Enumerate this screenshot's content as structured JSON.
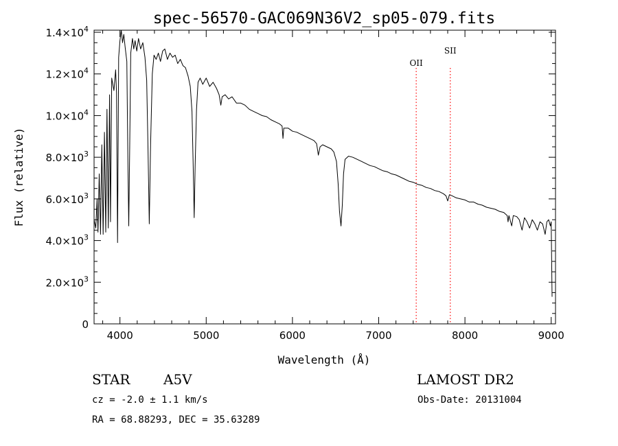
{
  "chart_data": {
    "type": "line",
    "title": "spec-56570-GAC069N36V2_sp05-079.fits",
    "xlabel": "Wavelength (Å)",
    "ylabel": "Flux (relative)",
    "xlim": [
      3700,
      9050
    ],
    "ylim": [
      0,
      14100
    ],
    "x_ticks": [
      {
        "value": 4000,
        "label": "4000"
      },
      {
        "value": 5000,
        "label": "5000"
      },
      {
        "value": 6000,
        "label": "6000"
      },
      {
        "value": 7000,
        "label": "7000"
      },
      {
        "value": 8000,
        "label": "8000"
      },
      {
        "value": 9000,
        "label": "9000"
      }
    ],
    "y_ticks": [
      {
        "value": 0,
        "mant": "0",
        "exp": ""
      },
      {
        "value": 2000,
        "mant": "2.0×10",
        "exp": "3"
      },
      {
        "value": 4000,
        "mant": "4.0×10",
        "exp": "3"
      },
      {
        "value": 6000,
        "mant": "6.0×10",
        "exp": "3"
      },
      {
        "value": 8000,
        "mant": "8.0×10",
        "exp": "3"
      },
      {
        "value": 10000,
        "mant": "1.0×10",
        "exp": "4"
      },
      {
        "value": 12000,
        "mant": "1.2×10",
        "exp": "4"
      },
      {
        "value": 14000,
        "mant": "1.4×10",
        "exp": "4"
      }
    ],
    "grid": false,
    "series": [
      {
        "color": "#000000",
        "points": [
          [
            3700,
            5000
          ],
          [
            3720,
            4600
          ],
          [
            3735,
            6000
          ],
          [
            3745,
            4400
          ],
          [
            3760,
            7200
          ],
          [
            3775,
            4300
          ],
          [
            3790,
            8600
          ],
          [
            3805,
            4300
          ],
          [
            3820,
            9200
          ],
          [
            3835,
            4400
          ],
          [
            3850,
            10300
          ],
          [
            3865,
            4600
          ],
          [
            3880,
            11000
          ],
          [
            3890,
            4900
          ],
          [
            3905,
            11800
          ],
          [
            3930,
            11200
          ],
          [
            3950,
            12200
          ],
          [
            3960,
            11100
          ],
          [
            3972,
            3900
          ],
          [
            3985,
            12800
          ],
          [
            4000,
            13600
          ],
          [
            4015,
            14100
          ],
          [
            4030,
            13500
          ],
          [
            4045,
            13900
          ],
          [
            4060,
            13300
          ],
          [
            4080,
            12600
          ],
          [
            4092,
            8000
          ],
          [
            4102,
            4700
          ],
          [
            4112,
            8200
          ],
          [
            4125,
            13000
          ],
          [
            4145,
            13700
          ],
          [
            4160,
            13200
          ],
          [
            4175,
            13600
          ],
          [
            4195,
            13100
          ],
          [
            4215,
            13700
          ],
          [
            4240,
            13200
          ],
          [
            4265,
            13500
          ],
          [
            4290,
            12800
          ],
          [
            4310,
            11700
          ],
          [
            4325,
            8500
          ],
          [
            4340,
            4800
          ],
          [
            4355,
            8600
          ],
          [
            4375,
            12000
          ],
          [
            4395,
            12900
          ],
          [
            4420,
            12700
          ],
          [
            4445,
            13000
          ],
          [
            4470,
            12600
          ],
          [
            4495,
            13100
          ],
          [
            4520,
            13200
          ],
          [
            4550,
            12700
          ],
          [
            4580,
            13000
          ],
          [
            4610,
            12800
          ],
          [
            4640,
            12900
          ],
          [
            4670,
            12500
          ],
          [
            4700,
            12700
          ],
          [
            4730,
            12400
          ],
          [
            4760,
            12300
          ],
          [
            4790,
            11900
          ],
          [
            4815,
            11400
          ],
          [
            4835,
            10200
          ],
          [
            4850,
            7500
          ],
          [
            4861,
            5100
          ],
          [
            4872,
            7600
          ],
          [
            4888,
            10300
          ],
          [
            4905,
            11600
          ],
          [
            4930,
            11800
          ],
          [
            4960,
            11500
          ],
          [
            5000,
            11800
          ],
          [
            5040,
            11400
          ],
          [
            5080,
            11600
          ],
          [
            5120,
            11300
          ],
          [
            5150,
            11000
          ],
          [
            5170,
            10500
          ],
          [
            5185,
            10900
          ],
          [
            5220,
            11000
          ],
          [
            5260,
            10800
          ],
          [
            5300,
            10900
          ],
          [
            5350,
            10600
          ],
          [
            5400,
            10600
          ],
          [
            5450,
            10500
          ],
          [
            5500,
            10300
          ],
          [
            5550,
            10200
          ],
          [
            5600,
            10100
          ],
          [
            5650,
            10000
          ],
          [
            5700,
            9950
          ],
          [
            5750,
            9800
          ],
          [
            5800,
            9700
          ],
          [
            5850,
            9600
          ],
          [
            5880,
            9500
          ],
          [
            5890,
            8900
          ],
          [
            5900,
            9400
          ],
          [
            5950,
            9400
          ],
          [
            6000,
            9250
          ],
          [
            6050,
            9200
          ],
          [
            6100,
            9100
          ],
          [
            6150,
            9000
          ],
          [
            6200,
            8900
          ],
          [
            6250,
            8800
          ],
          [
            6280,
            8650
          ],
          [
            6300,
            8100
          ],
          [
            6320,
            8500
          ],
          [
            6350,
            8600
          ],
          [
            6400,
            8500
          ],
          [
            6450,
            8400
          ],
          [
            6480,
            8250
          ],
          [
            6510,
            7800
          ],
          [
            6530,
            6700
          ],
          [
            6545,
            5400
          ],
          [
            6563,
            4700
          ],
          [
            6578,
            5700
          ],
          [
            6592,
            7200
          ],
          [
            6610,
            7900
          ],
          [
            6650,
            8050
          ],
          [
            6700,
            8000
          ],
          [
            6750,
            7900
          ],
          [
            6800,
            7800
          ],
          [
            6850,
            7700
          ],
          [
            6900,
            7600
          ],
          [
            6950,
            7550
          ],
          [
            7000,
            7450
          ],
          [
            7050,
            7350
          ],
          [
            7100,
            7300
          ],
          [
            7150,
            7200
          ],
          [
            7200,
            7150
          ],
          [
            7250,
            7050
          ],
          [
            7300,
            6950
          ],
          [
            7350,
            6850
          ],
          [
            7400,
            6800
          ],
          [
            7450,
            6700
          ],
          [
            7500,
            6650
          ],
          [
            7550,
            6550
          ],
          [
            7600,
            6500
          ],
          [
            7650,
            6400
          ],
          [
            7700,
            6350
          ],
          [
            7750,
            6250
          ],
          [
            7780,
            6150
          ],
          [
            7800,
            5900
          ],
          [
            7820,
            6200
          ],
          [
            7850,
            6150
          ],
          [
            7900,
            6050
          ],
          [
            7950,
            6000
          ],
          [
            8000,
            5950
          ],
          [
            8050,
            5850
          ],
          [
            8100,
            5850
          ],
          [
            8150,
            5750
          ],
          [
            8200,
            5700
          ],
          [
            8250,
            5600
          ],
          [
            8300,
            5550
          ],
          [
            8350,
            5500
          ],
          [
            8400,
            5400
          ],
          [
            8450,
            5350
          ],
          [
            8490,
            5200
          ],
          [
            8500,
            4900
          ],
          [
            8510,
            5200
          ],
          [
            8542,
            4700
          ],
          [
            8560,
            5200
          ],
          [
            8600,
            5150
          ],
          [
            8630,
            5000
          ],
          [
            8662,
            4500
          ],
          [
            8690,
            5100
          ],
          [
            8720,
            4900
          ],
          [
            8750,
            4600
          ],
          [
            8780,
            5000
          ],
          [
            8810,
            4800
          ],
          [
            8840,
            4500
          ],
          [
            8870,
            4900
          ],
          [
            8900,
            4800
          ],
          [
            8930,
            4300
          ],
          [
            8950,
            4900
          ],
          [
            8970,
            5000
          ],
          [
            8990,
            4700
          ],
          [
            9000,
            4900
          ],
          [
            9010,
            1300
          ]
        ]
      }
    ],
    "annotations": [
      {
        "label": "OII",
        "x": 7435,
        "color": "#ff0000",
        "style": "dotted"
      },
      {
        "label": "SII",
        "x": 7830,
        "color": "#ff0000",
        "style": "dotted"
      }
    ]
  },
  "info": {
    "object_type": "STAR",
    "subclass": "A5V",
    "survey": "LAMOST DR2",
    "redshift": "cz = -2.0 ± 1.1 km/s",
    "obs_date": "Obs-Date: 20131004",
    "coords": "RA =  68.88293, DEC =  35.63289"
  }
}
